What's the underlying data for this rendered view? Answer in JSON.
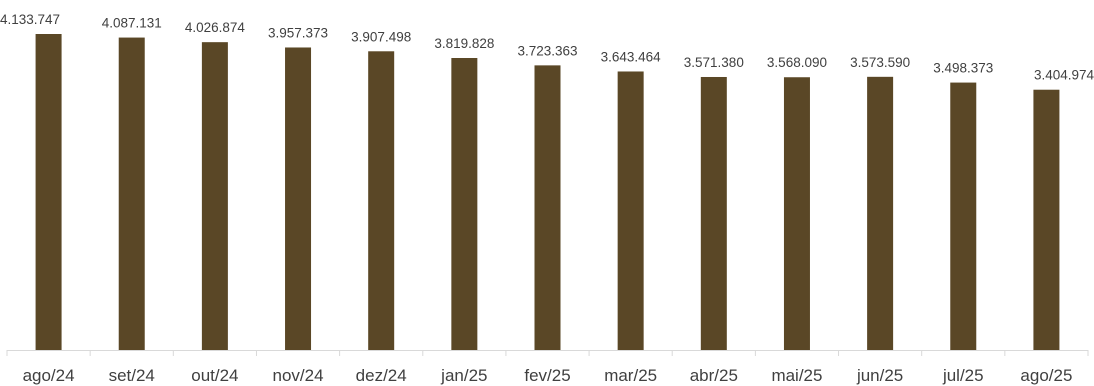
{
  "chart_data": {
    "type": "bar",
    "title": "",
    "xlabel": "",
    "ylabel": "",
    "categories": [
      "ago/24",
      "set/24",
      "out/24",
      "nov/24",
      "dez/24",
      "jan/25",
      "fev/25",
      "mar/25",
      "abr/25",
      "mai/25",
      "jun/25",
      "jul/25",
      "ago/25"
    ],
    "values": [
      4133747,
      4087131,
      4026874,
      3957373,
      3907498,
      3819828,
      3723363,
      3643464,
      3571380,
      3568090,
      3573590,
      3498373,
      3404974
    ],
    "value_labels": [
      "4.133.747",
      "4.087.131",
      "4.026.874",
      "3.957.373",
      "3.907.498",
      "3.819.828",
      "3.723.363",
      "3.643.464",
      "3.571.380",
      "3.568.090",
      "3.573.590",
      "3.498.373",
      "3.404.974"
    ],
    "ylim": [
      0,
      4500000
    ],
    "grid": false,
    "legend": "none",
    "bar_color": "#5a4726",
    "axis_color": "#d9d9d9",
    "text_color": "#404040"
  }
}
